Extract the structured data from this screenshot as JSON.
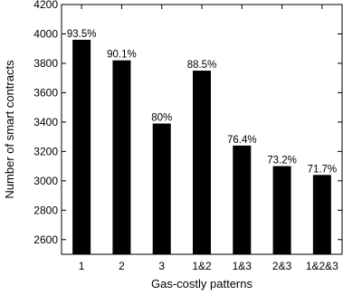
{
  "chart_data": {
    "type": "bar",
    "xlabel": "Gas-costly patterns",
    "ylabel": "Number of smart contracts",
    "categories": [
      "1",
      "2",
      "3",
      "1&2",
      "1&3",
      "2&3",
      "1&2&3"
    ],
    "values": [
      3960,
      3820,
      3390,
      3750,
      3240,
      3100,
      3040
    ],
    "data_labels": [
      "93.5%",
      "90.1%",
      "80%",
      "88.5%",
      "76.4%",
      "73.2%",
      "71.7%"
    ],
    "ylim": [
      2500,
      4200
    ],
    "yticks": [
      2600,
      2800,
      3000,
      3200,
      3400,
      3600,
      3800,
      4000,
      4200
    ],
    "ytick_labels": [
      "2600",
      "2800",
      "3000",
      "3200",
      "3400",
      "3600",
      "3800",
      "4000",
      "4200"
    ],
    "grid": false,
    "bar_color": "#000000"
  }
}
